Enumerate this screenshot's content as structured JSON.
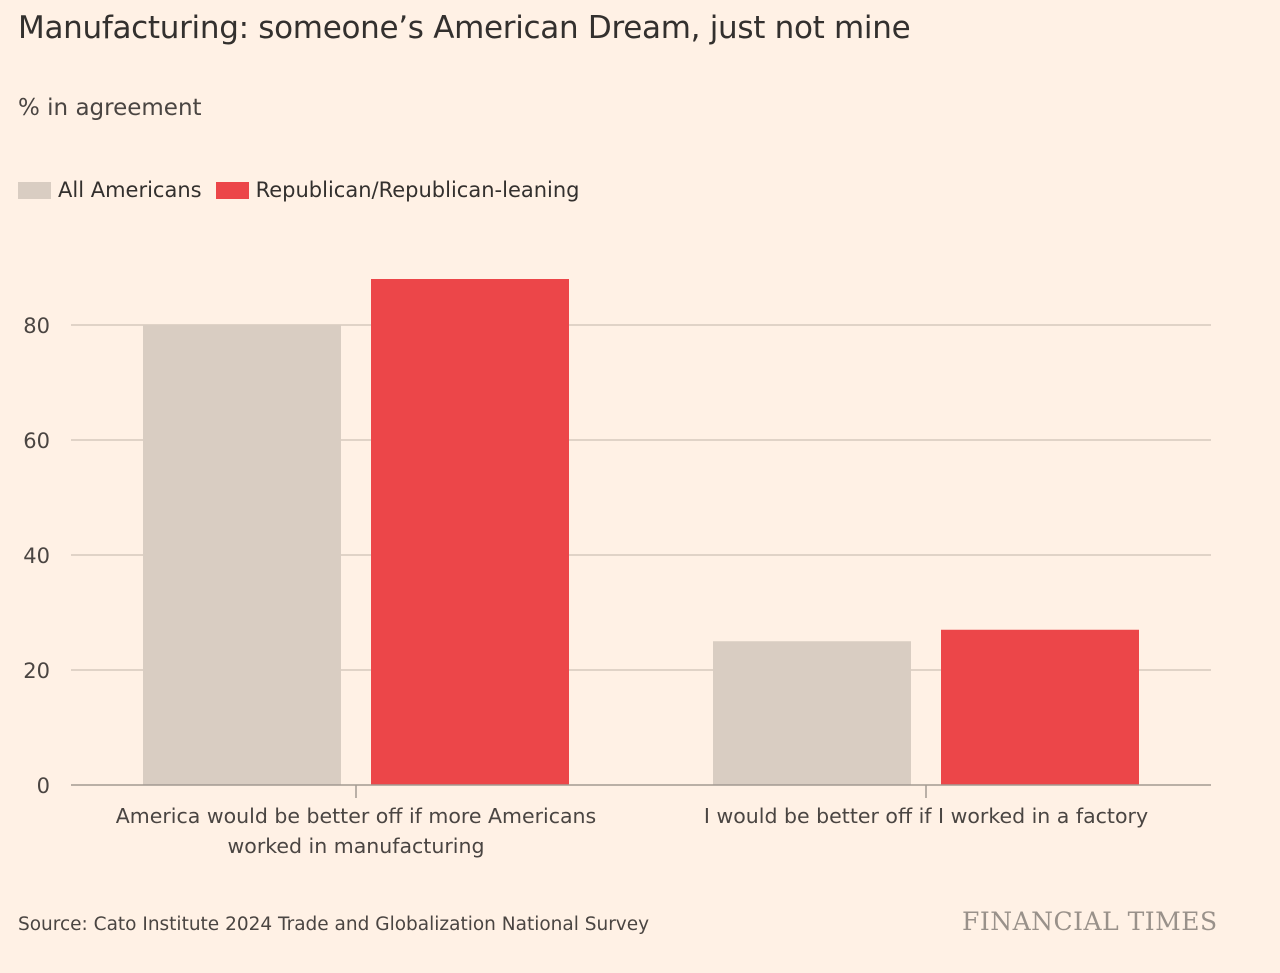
{
  "title": "Manufacturing: someone’s American Dream, just not mine",
  "subtitle": "% in agreement",
  "source": "Source: Cato Institute 2024 Trade and Globalization National Survey",
  "brand": "FINANCIAL TIMES",
  "colors": {
    "all": "#d9cdc2",
    "rep": "#ec4649",
    "grid": "#d5c9bd",
    "axis": "#a39a92",
    "text": "#4a4542"
  },
  "chart_data": {
    "type": "bar",
    "title": "Manufacturing: someone’s American Dream, just not mine",
    "subtitle": "% in agreement",
    "xlabel": "",
    "ylabel": "% in agreement",
    "ylim": [
      0,
      90
    ],
    "yticks": [
      0,
      20,
      40,
      60,
      80
    ],
    "grid": true,
    "legend_position": "top-left",
    "categories": [
      [
        "America would be better off if more Americans",
        "worked in manufacturing"
      ],
      [
        "I would be better off if I worked in a factory"
      ]
    ],
    "series": [
      {
        "name": "All Americans",
        "color": "#d9cdc2",
        "values": [
          80,
          25
        ]
      },
      {
        "name": "Republican/Republican-leaning",
        "color": "#ec4649",
        "values": [
          88,
          27
        ]
      }
    ]
  }
}
